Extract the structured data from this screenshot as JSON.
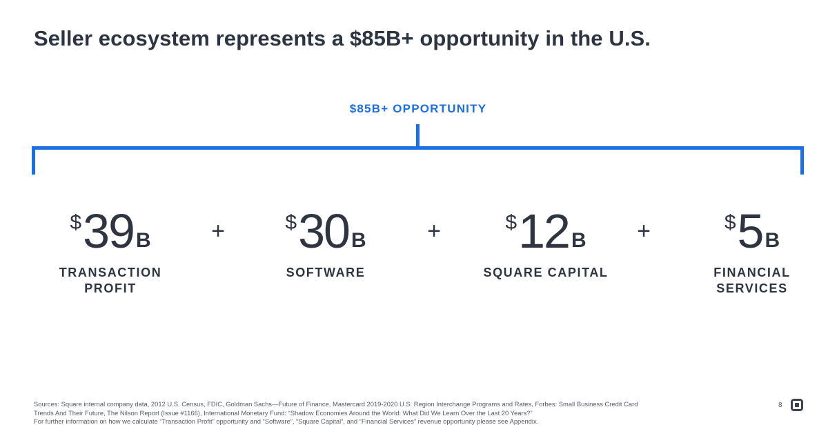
{
  "slide": {
    "title": "Seller ecosystem represents a $85B+ opportunity in the U.S.",
    "total_label": "$85B+ OPPORTUNITY",
    "accent_color": "#1a6ee6",
    "text_color": "#2e3440"
  },
  "segments": [
    {
      "currency": "$",
      "value": "39",
      "unit": "B",
      "label_line1": "TRANSACTION",
      "label_line2": "PROFIT"
    },
    {
      "currency": "$",
      "value": "30",
      "unit": "B",
      "label_line1": "SOFTWARE",
      "label_line2": ""
    },
    {
      "currency": "$",
      "value": "12",
      "unit": "B",
      "label_line1": "SQUARE CAPITAL",
      "label_line2": ""
    },
    {
      "currency": "$",
      "value": "5",
      "unit": "B",
      "label_line1": "FINANCIAL",
      "label_line2": "SERVICES"
    }
  ],
  "operators": [
    "+",
    "+",
    "+"
  ],
  "footer": {
    "sources_line1": "Sources: Square internal company data, 2012 U.S. Census, FDIC, Goldman Sachs—Future of Finance, Mastercard 2019-2020 U.S. Region Interchange Programs and Rates, Forbes: Small Business Credit Card",
    "sources_line2": "Trends And Their Future, The Nilson Report (Issue #1166), International Monetary Fund: “Shadow Economies Around the World: What Did We Learn Over the Last 20 Years?”",
    "sources_line3": "For further information on how we calculate “Transaction Profit” opportunity and “Software”, “Square Capital”, and “Financial Services” revenue opportunity please see Appendix.",
    "page_number": "8",
    "logo_icon": "square-logo-icon"
  }
}
